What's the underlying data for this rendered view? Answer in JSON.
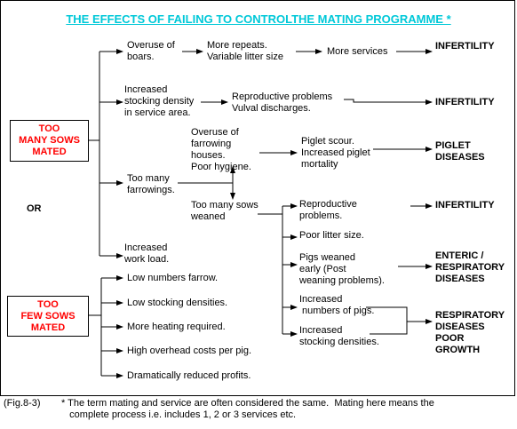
{
  "title": "THE EFFECTS OF FAILING TO CONTROLTHE  MATING PROGRAMME *",
  "colors": {
    "title": "#00c8d8",
    "source_box_text": "#ff0000",
    "lines": "#000000"
  },
  "sources": {
    "too_many": "TOO\nMANY SOWS\nMATED",
    "or": "OR",
    "too_few": "TOO\nFEW SOWS\nMATED"
  },
  "nodes": {
    "overuse_boars": "Overuse of\nboars.",
    "more_repeats": "More repeats.\nVariable litter size",
    "more_services": "More services",
    "infertility_1": "INFERTILITY",
    "stocking_density": "Increased\nstocking density\nin service area.",
    "repro_problems": "Reproductive problems\nVulval discharges.",
    "infertility_2": "INFERTILITY",
    "overuse_farrowing": "Overuse of\nfarrowing\nhouses.\nPoor hygiene.",
    "piglet_scour": "Piglet scour.\nIncreased piglet\nmortality",
    "piglet_diseases": "PIGLET\nDISEASES",
    "too_many_farrowings": "Too many\nfarrowings.",
    "too_many_weaned": "Too many sows\nweaned",
    "repro_problems_2": "Reproductive\nproblems.",
    "infertility_3": "INFERTILITY",
    "poor_litter": "Poor litter size.",
    "pigs_weaned_early": "Pigs weaned\nearly (Post\nweaning problems).",
    "enteric": "ENTERIC /\nRESPIRATORY\nDISEASES",
    "increased_numbers": "Increased\n numbers of pigs.",
    "increased_stocking": "Increased\nstocking densities.",
    "resp_poor_growth": "RESPIRATORY\nDISEASES\nPOOR\nGROWTH",
    "increased_work": "Increased\nwork load.",
    "low_farrow": "Low numbers farrow.",
    "low_stocking": "Low stocking densities.",
    "more_heating": "More heating required.",
    "high_overhead": "High overhead costs per pig.",
    "reduced_profits": "Dramatically reduced profits."
  },
  "caption": {
    "fig_label": "(Fig.8-3)",
    "note": "* The term mating and service are often considered the same.  Mating here means the\n   complete process i.e. includes 1, 2 or 3 services etc."
  }
}
